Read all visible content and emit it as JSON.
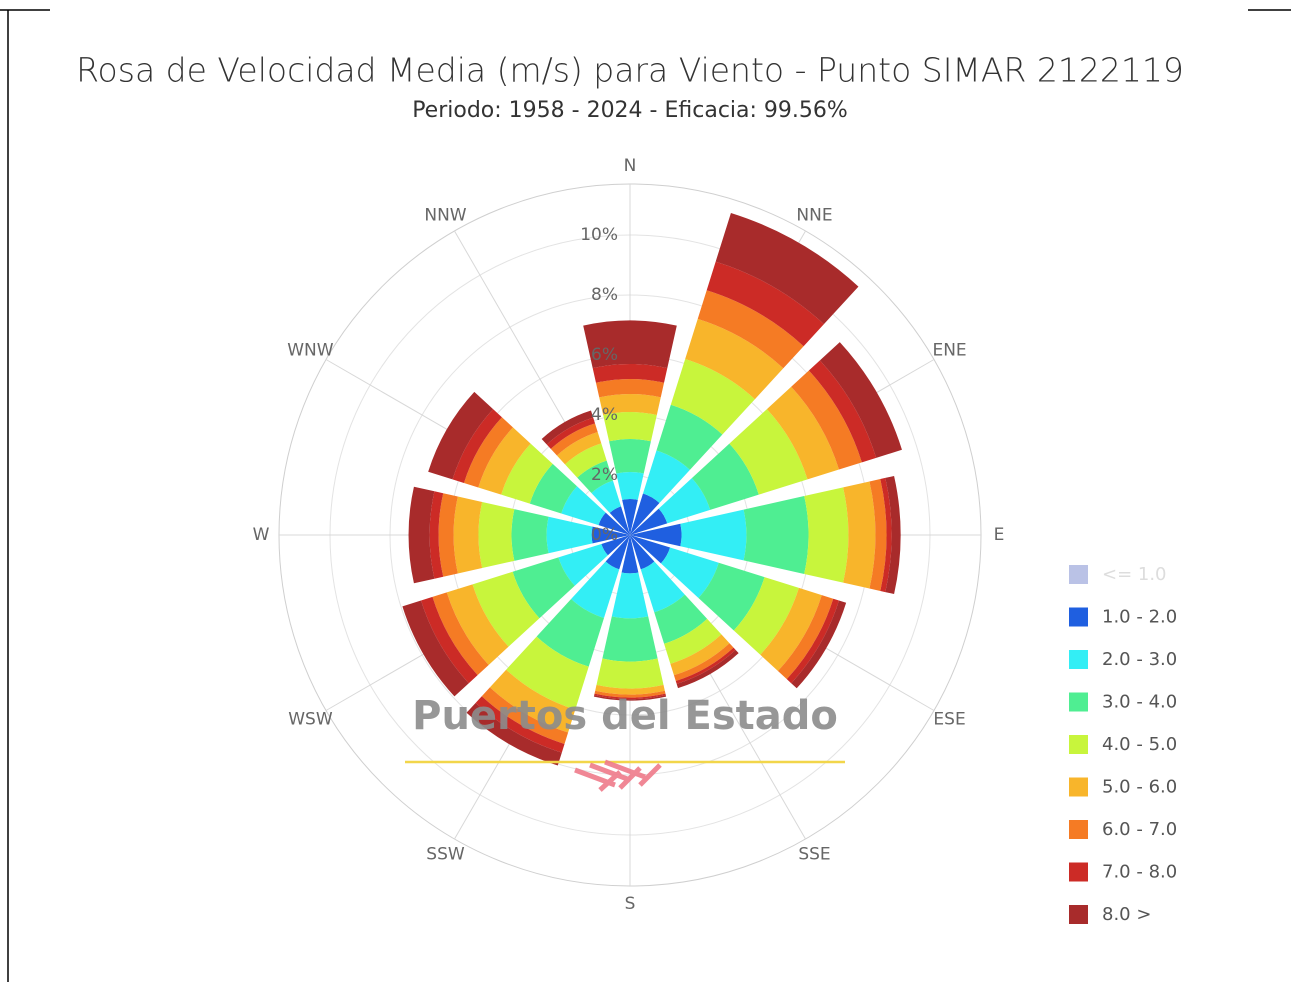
{
  "chart_data": {
    "type": "windrose",
    "title": "Rosa de Velocidad Media (m/s) para Viento - Punto SIMAR 2122119",
    "subtitle": "Periodo: 1958 - 2024 - Eficacia: 99.56%",
    "watermark": "Puertos del Estado",
    "categories": [
      "N",
      "NNE",
      "ENE",
      "E",
      "ESE",
      "SSE",
      "S",
      "SSW",
      "WSW",
      "W",
      "WNW",
      "NNW"
    ],
    "ylim": [
      0,
      11.7
    ],
    "yticks": [
      {
        "value": 0,
        "label": "0%"
      },
      {
        "value": 2,
        "label": "2%"
      },
      {
        "value": 4,
        "label": "4%"
      },
      {
        "value": 6,
        "label": "6%"
      },
      {
        "value": 8,
        "label": "8%"
      },
      {
        "value": 10,
        "label": "10%"
      }
    ],
    "series": [
      {
        "name": "<= 1.0",
        "color": "#b3bbe3",
        "visible": false
      },
      {
        "name": "1.0 - 2.0",
        "color": "#1f5fe0",
        "values": [
          1.2,
          1.45,
          1.3,
          1.72,
          1.4,
          1.2,
          1.28,
          1.2,
          1.0,
          1.28,
          1.1,
          1.0
        ]
      },
      {
        "name": "2.0 - 3.0",
        "color": "#33eef5",
        "values": [
          0.9,
          1.5,
          1.5,
          2.16,
          1.7,
          1.5,
          1.5,
          1.7,
          1.5,
          1.5,
          1.3,
          0.9
        ]
      },
      {
        "name": "3.0 - 4.0",
        "color": "#4fee92",
        "values": [
          1.1,
          1.6,
          1.7,
          2.07,
          1.6,
          1.1,
          1.44,
          1.7,
          1.6,
          1.17,
          1.1,
          0.7
        ]
      },
      {
        "name": "4.0 - 5.0",
        "color": "#c8f53c",
        "values": [
          0.9,
          1.6,
          1.7,
          1.33,
          1.2,
          0.7,
          0.9,
          1.5,
          1.4,
          1.1,
          1.0,
          0.6
        ]
      },
      {
        "name": "5.0 - 6.0",
        "color": "#f8b52b",
        "values": [
          0.6,
          1.4,
          1.1,
          0.9,
          0.8,
          0.4,
          0.2,
          0.8,
          0.9,
          0.83,
          0.8,
          0.4
        ]
      },
      {
        "name": "6.0 - 7.0",
        "color": "#f57b24",
        "values": [
          0.5,
          1.0,
          0.8,
          0.37,
          0.4,
          0.2,
          0.1,
          0.4,
          0.5,
          0.5,
          0.5,
          0.3
        ]
      },
      {
        "name": "7.0 - 8.0",
        "color": "#cc2b26",
        "values": [
          0.5,
          1.0,
          0.5,
          0.17,
          0.2,
          0.1,
          0.05,
          0.3,
          0.4,
          0.3,
          0.4,
          0.2
        ]
      },
      {
        "name": "8.0 >",
        "color": "#a82b2b",
        "values": [
          1.45,
          1.7,
          0.9,
          0.3,
          0.25,
          0.15,
          0.05,
          0.45,
          0.65,
          0.7,
          0.85,
          0.25
        ]
      }
    ]
  }
}
